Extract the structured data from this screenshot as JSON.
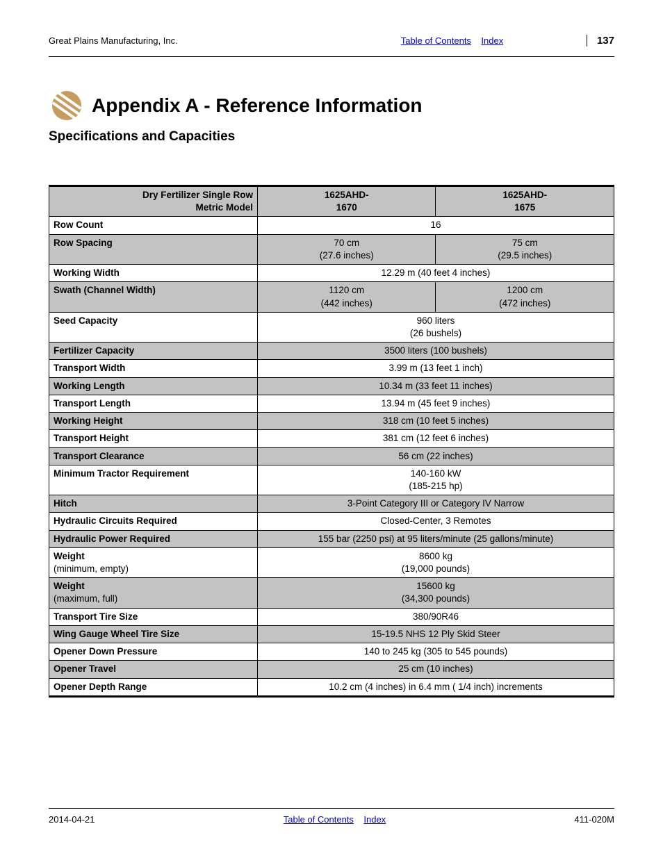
{
  "header": {
    "company": "Great Plains Manufacturing, Inc.",
    "toc": "Table of Contents",
    "index": "Index",
    "page": "137"
  },
  "title": "Appendix A - Reference Information",
  "subtitle": "Specifications and Capacities",
  "table": {
    "head": {
      "label_l1": "Dry Fertilizer Single Row",
      "label_l2": "Metric Model",
      "col1_l1": "1625AHD-",
      "col1_l2": "1670",
      "col2_l1": "1625AHD-",
      "col2_l2": "1675"
    },
    "rows": [
      {
        "gray": false,
        "label": "Row Count",
        "span": true,
        "val": "16"
      },
      {
        "gray": true,
        "label": "Row Spacing",
        "span": false,
        "v1_l1": "70 cm",
        "v1_l2": "(27.6 inches)",
        "v2_l1": "75 cm",
        "v2_l2": "(29.5 inches)"
      },
      {
        "gray": false,
        "label": "Working Width",
        "span": true,
        "val": "12.29 m (40 feet 4 inches)"
      },
      {
        "gray": true,
        "label": "Swath (Channel Width)",
        "span": false,
        "v1_l1": "1120 cm",
        "v1_l2": "(442 inches)",
        "v2_l1": "1200 cm",
        "v2_l2": "(472 inches)"
      },
      {
        "gray": false,
        "label": "Seed Capacity",
        "span": true,
        "val_l1": "960 liters",
        "val_l2": "(26 bushels)"
      },
      {
        "gray": true,
        "label": "Fertilizer Capacity",
        "span": true,
        "val": "3500 liters (100 bushels)"
      },
      {
        "gray": false,
        "label": "Transport Width",
        "span": true,
        "val": "3.99 m (13 feet 1 inch)"
      },
      {
        "gray": true,
        "label": "Working Length",
        "span": true,
        "val": "10.34 m (33 feet 11 inches)"
      },
      {
        "gray": false,
        "label": "Transport Length",
        "span": true,
        "val": "13.94 m (45 feet 9 inches)"
      },
      {
        "gray": true,
        "label": "Working Height",
        "span": true,
        "val": "318 cm (10 feet 5 inches)"
      },
      {
        "gray": false,
        "label": "Transport Height",
        "span": true,
        "val": "381 cm (12 feet 6 inches)"
      },
      {
        "gray": true,
        "label": "Transport Clearance",
        "span": true,
        "val": "56 cm (22 inches)"
      },
      {
        "gray": false,
        "label": "Minimum Tractor Requirement",
        "span": true,
        "val_l1": "140-160 kW",
        "val_l2": "(185-215 hp)"
      },
      {
        "gray": true,
        "label": "Hitch",
        "span": true,
        "val": "3-Point Category III or Category IV Narrow"
      },
      {
        "gray": false,
        "label": "Hydraulic Circuits Required",
        "span": true,
        "val": "Closed-Center, 3 Remotes"
      },
      {
        "gray": true,
        "label": "Hydraulic Power Required",
        "span": true,
        "val": "155 bar (2250 psi) at 95 liters/minute (25 gallons/minute)"
      },
      {
        "gray": false,
        "label_l1": "Weight",
        "label_l2": "(minimum, empty)",
        "span": true,
        "val_l1": "8600 kg",
        "val_l2": "(19,000 pounds)"
      },
      {
        "gray": true,
        "label_l1": "Weight",
        "label_l2": "(maximum, full)",
        "span": true,
        "val_l1": "15600 kg",
        "val_l2": "(34,300 pounds)"
      },
      {
        "gray": false,
        "label": "Transport Tire Size",
        "span": true,
        "val": "380/90R46"
      },
      {
        "gray": true,
        "label": "Wing Gauge Wheel Tire Size",
        "span": true,
        "val": "15-19.5 NHS 12 Ply Skid Steer"
      },
      {
        "gray": false,
        "label": "Opener Down Pressure",
        "span": true,
        "val": "140 to 245 kg (305 to 545 pounds)"
      },
      {
        "gray": true,
        "label": "Opener Travel",
        "span": true,
        "val": "25 cm (10 inches)"
      },
      {
        "gray": false,
        "label": "Opener Depth Range",
        "span": true,
        "val": "10.2 cm (4 inches) in 6.4 mm ( 1/4 inch) increments"
      }
    ]
  },
  "footer": {
    "date": "2014-04-21",
    "toc": "Table of Contents",
    "index": "Index",
    "doc": "411-020M"
  },
  "colors": {
    "header_gray": "#c3c3c3",
    "link": "#0000cc",
    "logo_primary": "#c89b5e",
    "logo_secondary": "#a97d3f"
  }
}
